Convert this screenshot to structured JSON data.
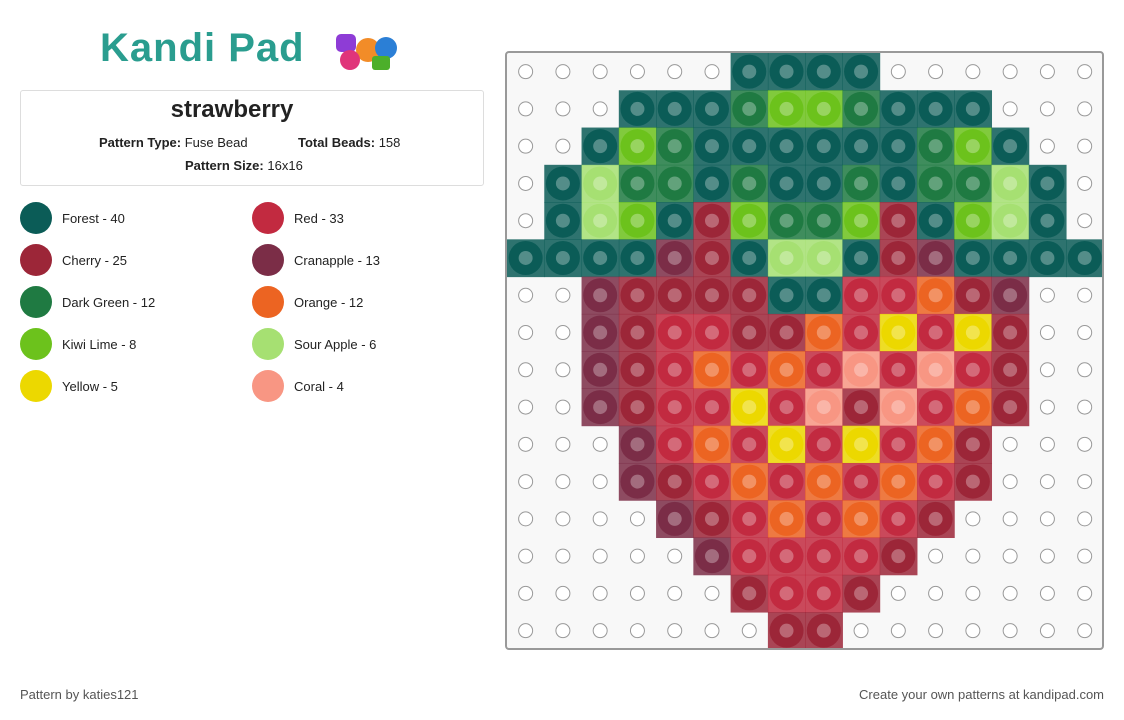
{
  "header": {
    "logo": "Kandi Pad"
  },
  "pattern": {
    "title": "strawberry",
    "fields": [
      {
        "label": "Pattern Type:",
        "value": "Fuse Bead"
      },
      {
        "label": "Total Beads:",
        "value": "158"
      },
      {
        "label": "Pattern Size:",
        "value": "16x16"
      }
    ]
  },
  "legend": [
    "Forest - 40",
    "Red - 33",
    "Cherry - 25",
    "Cranapple - 13",
    "Dark Green - 12",
    "Orange - 12",
    "Kiwi Lime - 8",
    "Sour Apple - 6",
    "Yellow - 5",
    "Coral - 4"
  ],
  "footer": {
    "author": "Pattern by katies121",
    "promo": "Create your own patterns at kandipad.com"
  }
}
